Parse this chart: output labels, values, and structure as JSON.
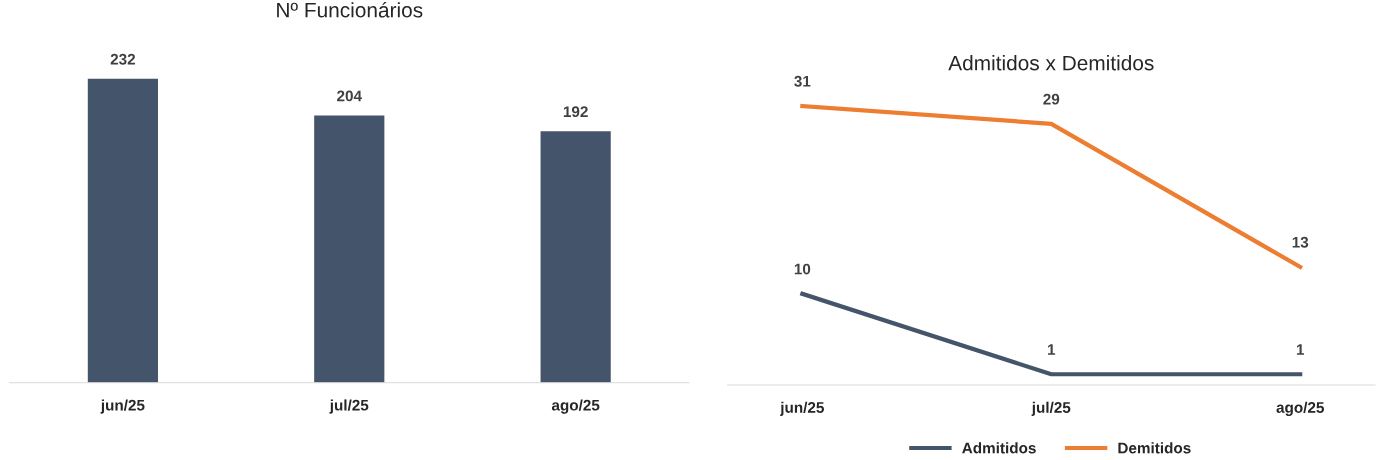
{
  "chart_data": [
    {
      "type": "bar",
      "title": "Nº Funcionários",
      "categories": [
        "jun/25",
        "jul/25",
        "ago/25"
      ],
      "values": [
        232,
        204,
        192
      ],
      "color": "#44546a",
      "data_labels": true,
      "tick_labels": "x",
      "grid": false
    },
    {
      "type": "line",
      "title": "Admitidos x Demitidos",
      "categories": [
        "jun/25",
        "jul/25",
        "ago/25"
      ],
      "series": [
        {
          "name": "Admitidos",
          "color": "#44546a",
          "values": [
            10,
            1,
            1
          ]
        },
        {
          "name": "Demitidos",
          "color": "#ed7d31",
          "values": [
            31,
            29,
            13
          ]
        }
      ],
      "data_labels": true,
      "tick_labels": "x",
      "grid": false,
      "legend": "bottom",
      "marker": "none",
      "line_style": "solid"
    }
  ]
}
